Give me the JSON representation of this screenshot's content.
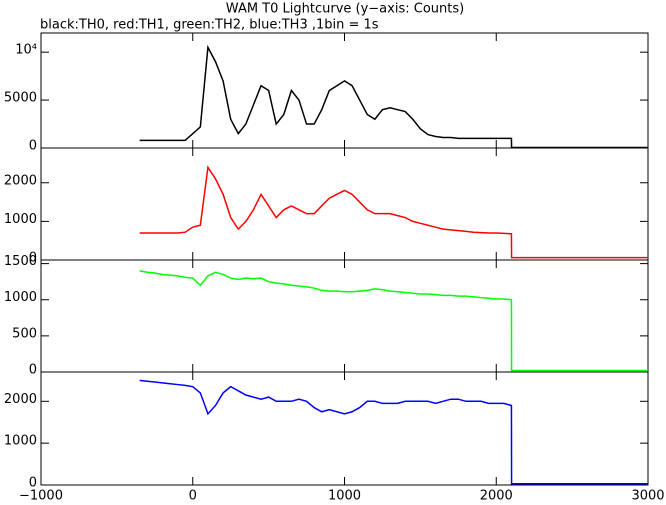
{
  "chart_data": {
    "type": "line",
    "title": "WAM T0 Lightcurve (y−axis: Counts)",
    "subtitle": "black:TH0, red:TH1, green:TH2, blue:TH3 ,1bin = 1s",
    "x": [
      -350,
      -300,
      -250,
      -200,
      -150,
      -100,
      -50,
      0,
      50,
      100,
      150,
      200,
      250,
      300,
      350,
      400,
      450,
      500,
      550,
      600,
      650,
      700,
      750,
      800,
      850,
      900,
      950,
      1000,
      1050,
      1100,
      1150,
      1200,
      1250,
      1300,
      1350,
      1400,
      1450,
      1500,
      1550,
      1600,
      1650,
      1700,
      1750,
      1800,
      1850,
      1900,
      1950,
      2000,
      2050,
      2100,
      2101,
      3000
    ],
    "xlim": [
      -1000,
      3000
    ],
    "xticks": [
      {
        "value": -1000,
        "label": "−1000"
      },
      0,
      1000,
      2000,
      3000
    ],
    "panels": [
      {
        "color": "#000000",
        "ylim": [
          0,
          12000
        ],
        "yticks": [
          0,
          5000,
          {
            "value": 10000,
            "label": "10⁴"
          }
        ],
        "values": [
          800,
          800,
          800,
          800,
          800,
          800,
          800,
          1500,
          2200,
          10500,
          9000,
          7000,
          3000,
          1500,
          2500,
          4500,
          6500,
          6000,
          2500,
          3500,
          6000,
          5000,
          2500,
          2500,
          4000,
          6000,
          6500,
          7000,
          6500,
          5000,
          3500,
          3000,
          4000,
          4200,
          4000,
          3800,
          3000,
          2000,
          1400,
          1200,
          1100,
          1100,
          1000,
          1000,
          1000,
          1000,
          1000,
          1000,
          1000,
          1000,
          50,
          50
        ]
      },
      {
        "color": "#ff0000",
        "ylim": [
          0,
          2900
        ],
        "yticks": [
          0,
          1000,
          2000
        ],
        "values": [
          700,
          700,
          700,
          700,
          700,
          700,
          720,
          850,
          900,
          2400,
          2100,
          1700,
          1100,
          800,
          1000,
          1300,
          1700,
          1400,
          1100,
          1300,
          1400,
          1300,
          1200,
          1200,
          1400,
          1600,
          1700,
          1800,
          1700,
          1500,
          1300,
          1200,
          1200,
          1200,
          1150,
          1100,
          1000,
          950,
          900,
          850,
          800,
          780,
          760,
          740,
          720,
          710,
          700,
          700,
          690,
          680,
          60,
          60
        ]
      },
      {
        "color": "#00ff00",
        "ylim": [
          0,
          1550
        ],
        "yticks": [
          0,
          500,
          1000,
          1500
        ],
        "values": [
          1400,
          1380,
          1370,
          1350,
          1340,
          1330,
          1310,
          1300,
          1200,
          1330,
          1380,
          1350,
          1300,
          1280,
          1300,
          1290,
          1300,
          1250,
          1230,
          1220,
          1200,
          1190,
          1180,
          1160,
          1130,
          1120,
          1120,
          1110,
          1110,
          1120,
          1130,
          1150,
          1140,
          1120,
          1110,
          1100,
          1090,
          1080,
          1080,
          1070,
          1060,
          1060,
          1050,
          1050,
          1040,
          1030,
          1020,
          1010,
          1010,
          1000,
          20,
          20
        ]
      },
      {
        "color": "#0000ff",
        "ylim": [
          0,
          2700
        ],
        "yticks": [
          0,
          1000,
          2000
        ],
        "values": [
          2500,
          2480,
          2460,
          2440,
          2420,
          2400,
          2380,
          2350,
          2200,
          1700,
          1900,
          2200,
          2350,
          2250,
          2150,
          2100,
          2050,
          2100,
          2000,
          2000,
          2000,
          2050,
          2000,
          1850,
          1750,
          1800,
          1750,
          1700,
          1750,
          1850,
          2000,
          2000,
          1950,
          1950,
          1950,
          2000,
          2000,
          2000,
          2000,
          1950,
          2000,
          2050,
          2050,
          2000,
          2000,
          2000,
          1950,
          1950,
          1950,
          1900,
          30,
          30
        ]
      }
    ]
  }
}
